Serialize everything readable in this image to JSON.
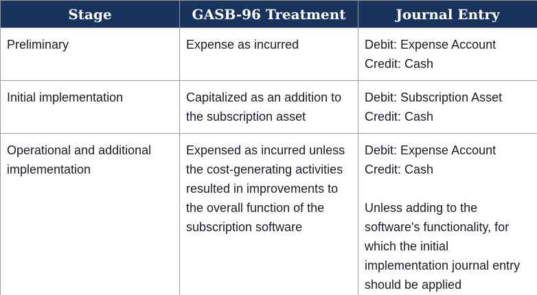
{
  "colors": {
    "header_bg": "#18345c",
    "header_text": "#ffffff",
    "body_text": "#1a1a28",
    "border": "#999999"
  },
  "table": {
    "columns": [
      "Stage",
      "GASB-96 Treatment",
      "Journal Entry"
    ],
    "rows": [
      {
        "stage": "Preliminary",
        "treatment": "Expense as incurred",
        "journal_entry": "Debit: Expense Account\nCredit: Cash"
      },
      {
        "stage": "Initial implementation",
        "treatment": "Capitalized as an addition to the subscription asset",
        "journal_entry": "Debit: Subscription Asset\nCredit: Cash"
      },
      {
        "stage": "Operational and additional implementation",
        "treatment": "Expensed as incurred unless the cost-generating activities resulted in improvements to the overall function of the subscription software",
        "journal_entry": "Debit: Expense Account\nCredit: Cash\n\nUnless adding to the software's functionality, for which the initial implementation journal entry should be applied"
      }
    ]
  }
}
